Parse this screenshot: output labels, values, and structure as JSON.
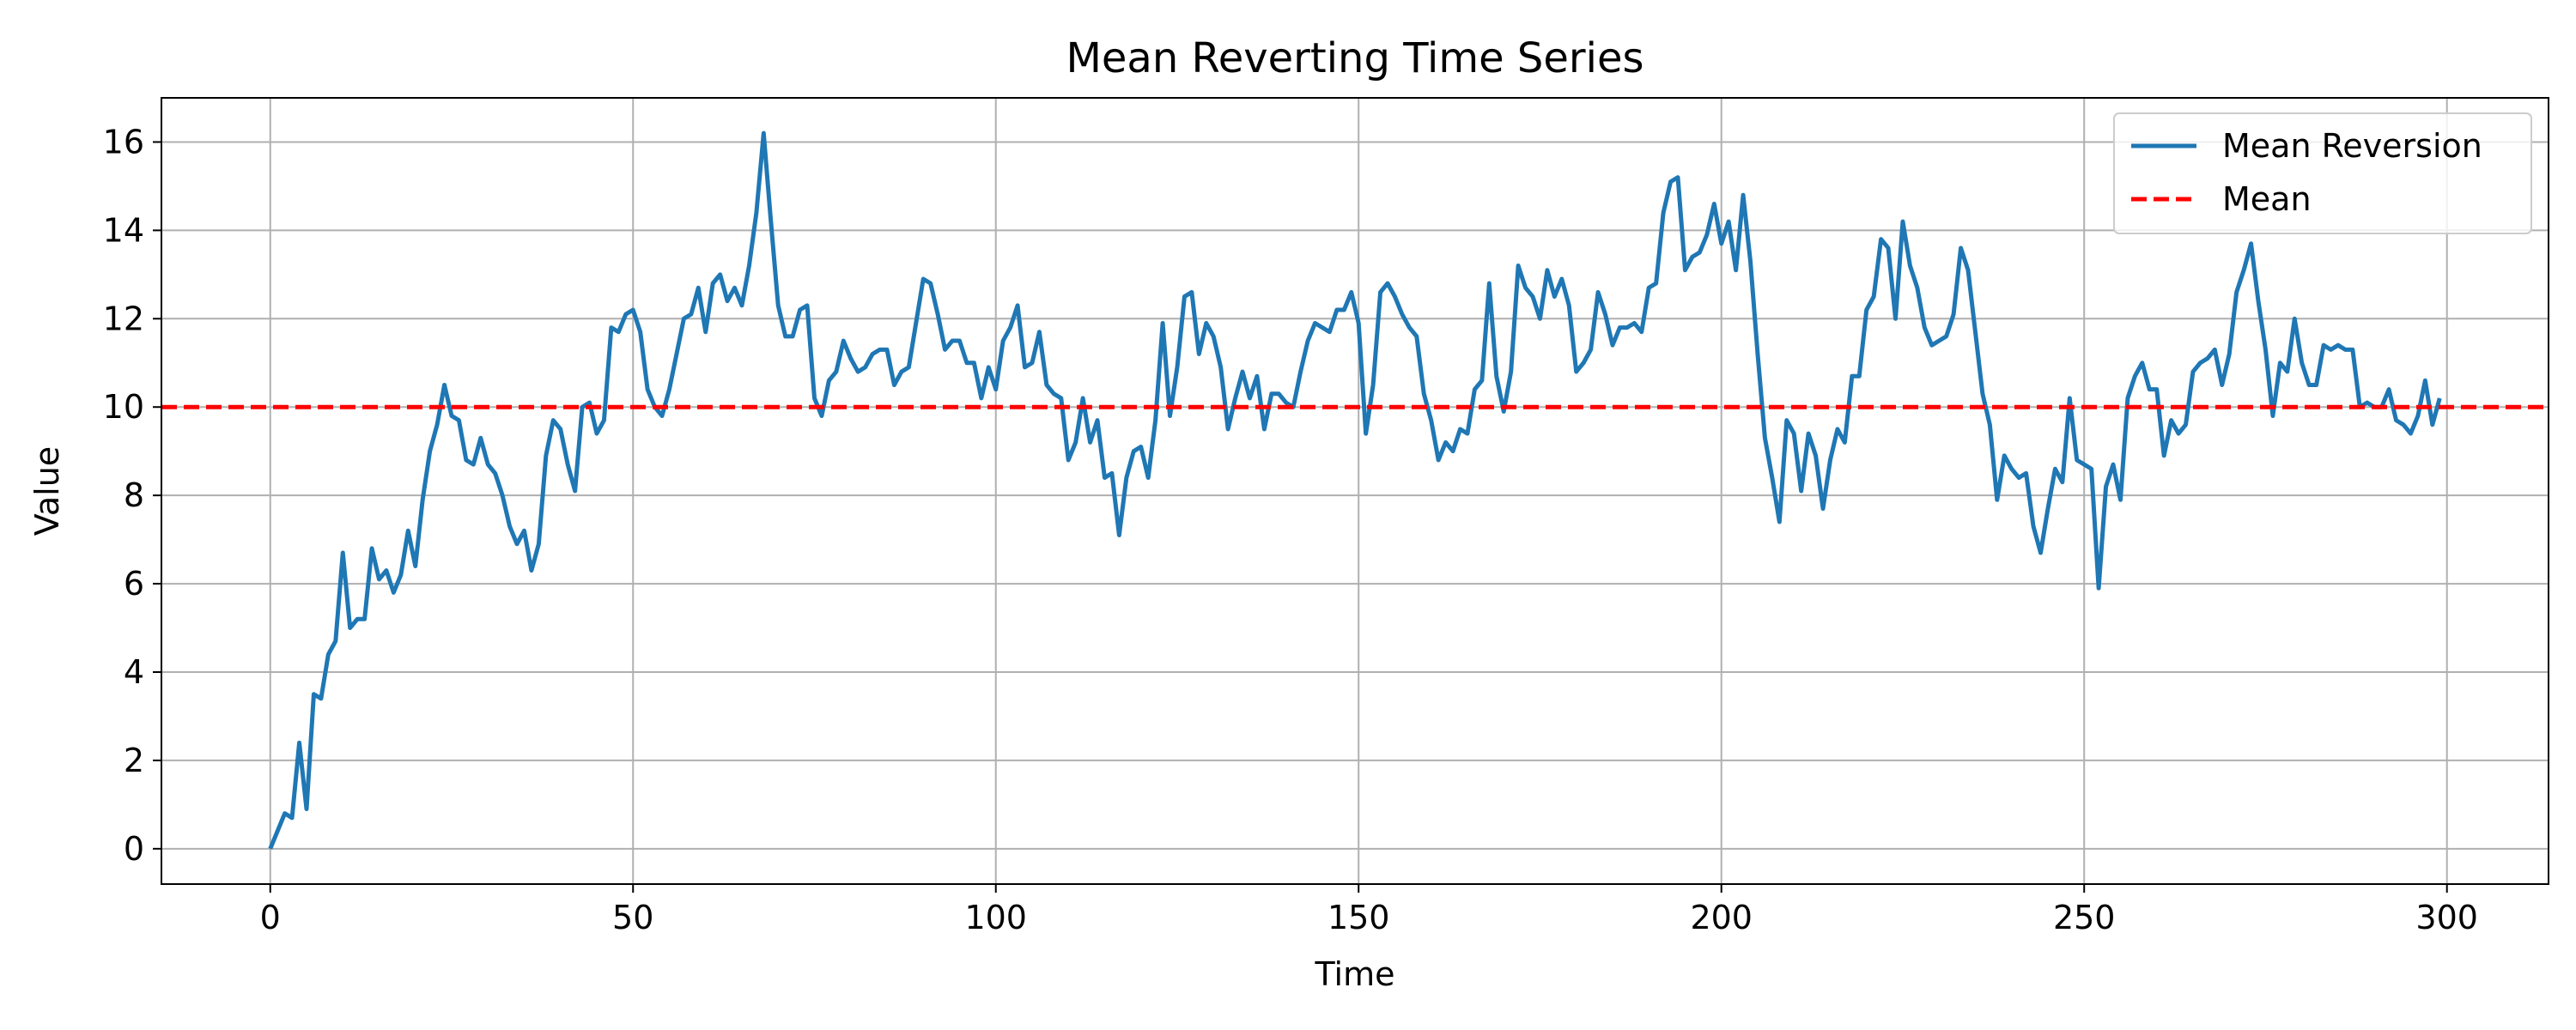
{
  "chart_data": {
    "type": "line",
    "title": "Mean Reverting Time Series",
    "xlabel": "Time",
    "ylabel": "Value",
    "xlim": [
      -15,
      314
    ],
    "ylim": [
      -0.8,
      17
    ],
    "xticks": [
      0,
      50,
      100,
      150,
      200,
      250,
      300
    ],
    "yticks": [
      0,
      2,
      4,
      6,
      8,
      10,
      12,
      14,
      16
    ],
    "grid": true,
    "legend_position": "top-right",
    "series": [
      {
        "name": "Mean Reversion",
        "color": "#1f77b4",
        "style": "solid",
        "x_start": 0,
        "x_step": 1,
        "values": [
          0.0,
          0.4,
          0.8,
          0.7,
          2.4,
          0.9,
          3.5,
          3.4,
          4.4,
          4.7,
          6.7,
          5.0,
          5.2,
          5.2,
          6.8,
          6.1,
          6.3,
          5.8,
          6.2,
          7.2,
          6.4,
          7.9,
          9.0,
          9.6,
          10.5,
          9.8,
          9.7,
          8.8,
          8.7,
          9.3,
          8.7,
          8.5,
          8.0,
          7.3,
          6.9,
          7.2,
          6.3,
          6.9,
          8.9,
          9.7,
          9.5,
          8.7,
          8.1,
          10.0,
          10.1,
          9.4,
          9.7,
          11.8,
          11.7,
          12.1,
          12.2,
          11.7,
          10.4,
          10.0,
          9.8,
          10.4,
          11.2,
          12.0,
          12.1,
          12.7,
          11.7,
          12.8,
          13.0,
          12.4,
          12.7,
          12.3,
          13.2,
          14.4,
          16.2,
          14.2,
          12.3,
          11.6,
          11.6,
          12.2,
          12.3,
          10.2,
          9.8,
          10.6,
          10.8,
          11.5,
          11.1,
          10.8,
          10.9,
          11.2,
          11.3,
          11.3,
          10.5,
          10.8,
          10.9,
          11.9,
          12.9,
          12.8,
          12.1,
          11.3,
          11.5,
          11.5,
          11.0,
          11.0,
          10.2,
          10.9,
          10.4,
          11.5,
          11.8,
          12.3,
          10.9,
          11.0,
          11.7,
          10.5,
          10.3,
          10.2,
          8.8,
          9.2,
          10.2,
          9.2,
          9.7,
          8.4,
          8.5,
          7.1,
          8.4,
          9.0,
          9.1,
          8.4,
          9.7,
          11.9,
          9.8,
          10.9,
          12.5,
          12.6,
          11.2,
          11.9,
          11.6,
          10.9,
          9.5,
          10.2,
          10.8,
          10.2,
          10.7,
          9.5,
          10.3,
          10.3,
          10.1,
          10.0,
          10.8,
          11.5,
          11.9,
          11.8,
          11.7,
          12.2,
          12.2,
          12.6,
          11.9,
          9.4,
          10.5,
          12.6,
          12.8,
          12.5,
          12.1,
          11.8,
          11.6,
          10.3,
          9.7,
          8.8,
          9.2,
          9.0,
          9.5,
          9.4,
          10.4,
          10.6,
          12.8,
          10.7,
          9.9,
          10.8,
          13.2,
          12.7,
          12.5,
          12.0,
          13.1,
          12.5,
          12.9,
          12.3,
          10.8,
          11.0,
          11.3,
          12.6,
          12.1,
          11.4,
          11.8,
          11.8,
          11.9,
          11.7,
          12.7,
          12.8,
          14.4,
          15.1,
          15.2,
          13.1,
          13.4,
          13.5,
          13.9,
          14.6,
          13.7,
          14.2,
          13.1,
          14.8,
          13.3,
          11.2,
          9.3,
          8.4,
          7.4,
          9.7,
          9.4,
          8.1,
          9.4,
          8.9,
          7.7,
          8.8,
          9.5,
          9.2,
          10.7,
          10.7,
          12.2,
          12.5,
          13.8,
          13.6,
          12.0,
          14.2,
          13.2,
          12.7,
          11.8,
          11.4,
          11.5,
          11.6,
          12.1,
          13.6,
          13.1,
          11.7,
          10.3,
          9.6,
          7.9,
          8.9,
          8.6,
          8.4,
          8.5,
          7.3,
          6.7,
          7.7,
          8.6,
          8.3,
          10.2,
          8.8,
          8.7,
          8.6,
          5.9,
          8.2,
          8.7,
          7.9,
          10.2,
          10.7,
          11.0,
          10.4,
          10.4,
          8.9,
          9.7,
          9.4,
          9.6,
          10.8,
          11.0,
          11.1,
          11.3,
          10.5,
          11.2,
          12.6,
          13.1,
          13.7,
          12.4,
          11.3,
          9.8,
          11.0,
          10.8,
          12.0,
          11.0,
          10.5,
          10.5,
          11.4,
          11.3,
          11.4,
          11.3,
          11.3,
          10.0,
          10.1,
          10.0,
          10.0,
          10.4,
          9.7,
          9.6,
          9.4,
          9.8,
          10.6,
          9.6,
          10.2
        ]
      },
      {
        "name": "Mean",
        "color": "#ff0000",
        "style": "dashed",
        "constant": 10
      }
    ]
  }
}
